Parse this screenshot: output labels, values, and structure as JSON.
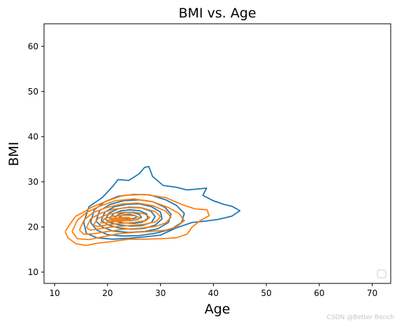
{
  "chart_data": {
    "type": "kde-contour",
    "title": "BMI vs. Age",
    "xlabel": "Age",
    "ylabel": "BMI",
    "xlim": [
      8,
      73.5
    ],
    "ylim": [
      7.5,
      65
    ],
    "x_ticks": [
      10,
      20,
      30,
      40,
      50,
      60,
      70
    ],
    "y_ticks": [
      10,
      20,
      30,
      40,
      50,
      60
    ],
    "legend_position": "lower-right",
    "legend_entries": [],
    "series": [
      {
        "color": "#1f77b4",
        "contours": [
          [
            [
              15.5,
              21
            ],
            [
              16.5,
              24.5
            ],
            [
              19,
              26.5
            ],
            [
              21,
              29
            ],
            [
              22,
              30.5
            ],
            [
              24,
              30.3
            ],
            [
              26,
              31.8
            ],
            [
              27,
              33.2
            ],
            [
              27.8,
              33.4
            ],
            [
              28.5,
              31.2
            ],
            [
              30.5,
              29.2
            ],
            [
              33,
              28.8
            ],
            [
              35,
              28.2
            ],
            [
              37,
              28.4
            ],
            [
              38.7,
              28.6
            ],
            [
              38,
              27
            ],
            [
              40,
              25.8
            ],
            [
              42,
              25
            ],
            [
              43.5,
              24.6
            ],
            [
              45,
              23.6
            ],
            [
              43.5,
              22.4
            ],
            [
              41,
              21.7
            ],
            [
              38.5,
              21.3
            ],
            [
              36,
              21
            ],
            [
              33,
              19.8
            ],
            [
              30,
              18.2
            ],
            [
              27,
              17.8
            ],
            [
              24,
              17.5
            ],
            [
              21,
              17.3
            ],
            [
              18,
              17.6
            ],
            [
              16,
              18.6
            ],
            [
              15.5,
              21
            ]
          ],
          [
            [
              16.8,
              21
            ],
            [
              17.5,
              23.8
            ],
            [
              19.5,
              25.6
            ],
            [
              22,
              26.8
            ],
            [
              25,
              27.2
            ],
            [
              28,
              27.1
            ],
            [
              31,
              26
            ],
            [
              33,
              24.8
            ],
            [
              34.5,
              23
            ],
            [
              34,
              21
            ],
            [
              32,
              19.5
            ],
            [
              29,
              18.6
            ],
            [
              26,
              18.1
            ],
            [
              23,
              18
            ],
            [
              20,
              18.3
            ],
            [
              18,
              19.3
            ],
            [
              16.8,
              21
            ]
          ],
          [
            [
              17.8,
              21.3
            ],
            [
              18.5,
              23.6
            ],
            [
              20.5,
              25
            ],
            [
              23,
              25.8
            ],
            [
              26,
              26
            ],
            [
              28.5,
              25.6
            ],
            [
              30.8,
              24.4
            ],
            [
              32,
              22.8
            ],
            [
              31.5,
              21
            ],
            [
              29.5,
              19.6
            ],
            [
              27,
              19
            ],
            [
              24,
              18.8
            ],
            [
              21,
              19.1
            ],
            [
              19,
              20
            ],
            [
              17.8,
              21.3
            ]
          ],
          [
            [
              18.8,
              21.5
            ],
            [
              19.5,
              23.3
            ],
            [
              21.3,
              24.5
            ],
            [
              23.5,
              25
            ],
            [
              26,
              25.1
            ],
            [
              28.3,
              24.5
            ],
            [
              30,
              23.3
            ],
            [
              30.3,
              21.8
            ],
            [
              29,
              20.4
            ],
            [
              27,
              19.7
            ],
            [
              24.5,
              19.5
            ],
            [
              22,
              19.8
            ],
            [
              20,
              20.5
            ],
            [
              18.8,
              21.5
            ]
          ],
          [
            [
              19.6,
              21.7
            ],
            [
              20.3,
              23.1
            ],
            [
              22,
              24
            ],
            [
              24,
              24.4
            ],
            [
              26.2,
              24.3
            ],
            [
              28.2,
              23.5
            ],
            [
              29,
              22.3
            ],
            [
              28.3,
              21
            ],
            [
              26.5,
              20.3
            ],
            [
              24.3,
              20.2
            ],
            [
              22,
              20.5
            ],
            [
              20.4,
              21
            ],
            [
              19.6,
              21.7
            ]
          ],
          [
            [
              20.4,
              21.9
            ],
            [
              21.2,
              23
            ],
            [
              22.6,
              23.6
            ],
            [
              24.3,
              23.8
            ],
            [
              26,
              23.6
            ],
            [
              27.4,
              22.9
            ],
            [
              27.6,
              21.9
            ],
            [
              26.6,
              21.1
            ],
            [
              25,
              20.8
            ],
            [
              23,
              20.9
            ],
            [
              21.3,
              21.3
            ],
            [
              20.4,
              21.9
            ]
          ],
          [
            [
              21.3,
              22.1
            ],
            [
              22.1,
              22.8
            ],
            [
              23.3,
              23.2
            ],
            [
              24.7,
              23.2
            ],
            [
              26,
              22.8
            ],
            [
              26.4,
              22.1
            ],
            [
              25.6,
              21.6
            ],
            [
              24.2,
              21.4
            ],
            [
              22.6,
              21.5
            ],
            [
              21.3,
              22.1
            ]
          ],
          [
            [
              22.2,
              22.2
            ],
            [
              23,
              22.7
            ],
            [
              24.2,
              22.8
            ],
            [
              25.3,
              22.5
            ],
            [
              25.4,
              22
            ],
            [
              24.4,
              21.8
            ],
            [
              23.1,
              21.8
            ],
            [
              22.2,
              22.2
            ]
          ]
        ]
      },
      {
        "color": "#ff7f0e",
        "contours": [
          [
            [
              12,
              19
            ],
            [
              13,
              20.8
            ],
            [
              14,
              22.4
            ],
            [
              15.5,
              23.3
            ],
            [
              17,
              24.4
            ],
            [
              20,
              25.8
            ],
            [
              23,
              27
            ],
            [
              27,
              27.2
            ],
            [
              31,
              26.5
            ],
            [
              34,
              25
            ],
            [
              36.5,
              24
            ],
            [
              38.8,
              23.8
            ],
            [
              39.2,
              22.5
            ],
            [
              37.5,
              21.4
            ],
            [
              36,
              20
            ],
            [
              35,
              18.4
            ],
            [
              33,
              17.6
            ],
            [
              30,
              17.4
            ],
            [
              27,
              17.3
            ],
            [
              24,
              17.3
            ],
            [
              21,
              16.8
            ],
            [
              18,
              16.4
            ],
            [
              16,
              15.9
            ],
            [
              14,
              16.3
            ],
            [
              12.5,
              17.6
            ],
            [
              12,
              19
            ]
          ],
          [
            [
              13.3,
              19
            ],
            [
              14.3,
              21.5
            ],
            [
              16,
              23.2
            ],
            [
              18.5,
              24.6
            ],
            [
              21.5,
              25.8
            ],
            [
              25,
              26.2
            ],
            [
              28.5,
              25.6
            ],
            [
              31.5,
              24.3
            ],
            [
              33.5,
              23
            ],
            [
              34.5,
              21.4
            ],
            [
              33,
              20
            ],
            [
              31,
              19.3
            ],
            [
              28,
              19
            ],
            [
              25,
              18.8
            ],
            [
              22,
              18.5
            ],
            [
              19,
              17.8
            ],
            [
              16.5,
              17.2
            ],
            [
              14.3,
              17.4
            ],
            [
              13.3,
              19
            ]
          ],
          [
            [
              14.7,
              19.3
            ],
            [
              15.6,
              21.6
            ],
            [
              17.3,
              23.2
            ],
            [
              19.8,
              24.3
            ],
            [
              22.8,
              25.1
            ],
            [
              25.8,
              25.3
            ],
            [
              28.6,
              24.7
            ],
            [
              31,
              23.5
            ],
            [
              32,
              22.2
            ],
            [
              31,
              20.9
            ],
            [
              29,
              20.1
            ],
            [
              26,
              19.7
            ],
            [
              23,
              19.5
            ],
            [
              20,
              19
            ],
            [
              17.5,
              18.5
            ],
            [
              15.5,
              18.4
            ],
            [
              14.7,
              19.3
            ]
          ],
          [
            [
              16,
              19.8
            ],
            [
              16.8,
              21.8
            ],
            [
              18.6,
              23
            ],
            [
              21,
              23.9
            ],
            [
              23.8,
              24.3
            ],
            [
              26.6,
              24.2
            ],
            [
              29,
              23.4
            ],
            [
              30,
              22.3
            ],
            [
              29.2,
              21.2
            ],
            [
              27,
              20.6
            ],
            [
              24,
              20.3
            ],
            [
              21,
              20
            ],
            [
              18.5,
              19.6
            ],
            [
              16.8,
              19.3
            ],
            [
              16,
              19.8
            ]
          ],
          [
            [
              17.3,
              20.4
            ],
            [
              18.2,
              21.9
            ],
            [
              20,
              22.8
            ],
            [
              22.3,
              23.2
            ],
            [
              24.8,
              23.3
            ],
            [
              27,
              22.9
            ],
            [
              28,
              22.1
            ],
            [
              27.2,
              21.4
            ],
            [
              25,
              21
            ],
            [
              22.5,
              20.8
            ],
            [
              20,
              20.5
            ],
            [
              18.2,
              20.1
            ],
            [
              17.3,
              20.4
            ]
          ],
          [
            [
              18.6,
              20.9
            ],
            [
              19.5,
              21.9
            ],
            [
              21.2,
              22.4
            ],
            [
              23.2,
              22.6
            ],
            [
              25.2,
              22.5
            ],
            [
              26.2,
              22
            ],
            [
              25.4,
              21.6
            ],
            [
              23.5,
              21.4
            ],
            [
              21.4,
              21.2
            ],
            [
              19.6,
              20.9
            ],
            [
              18.6,
              20.9
            ]
          ],
          [
            [
              19.8,
              21.3
            ],
            [
              20.8,
              21.9
            ],
            [
              22.4,
              22.1
            ],
            [
              24,
              22.1
            ],
            [
              24.6,
              21.8
            ],
            [
              23.5,
              21.6
            ],
            [
              21.8,
              21.5
            ],
            [
              20.4,
              21.3
            ],
            [
              19.8,
              21.3
            ]
          ],
          [
            [
              21,
              21.6
            ],
            [
              22,
              21.9
            ],
            [
              23.2,
              21.9
            ],
            [
              23.3,
              21.7
            ],
            [
              22.3,
              21.6
            ],
            [
              21,
              21.6
            ]
          ]
        ]
      }
    ]
  },
  "watermark": "CSDN @Better Bench"
}
